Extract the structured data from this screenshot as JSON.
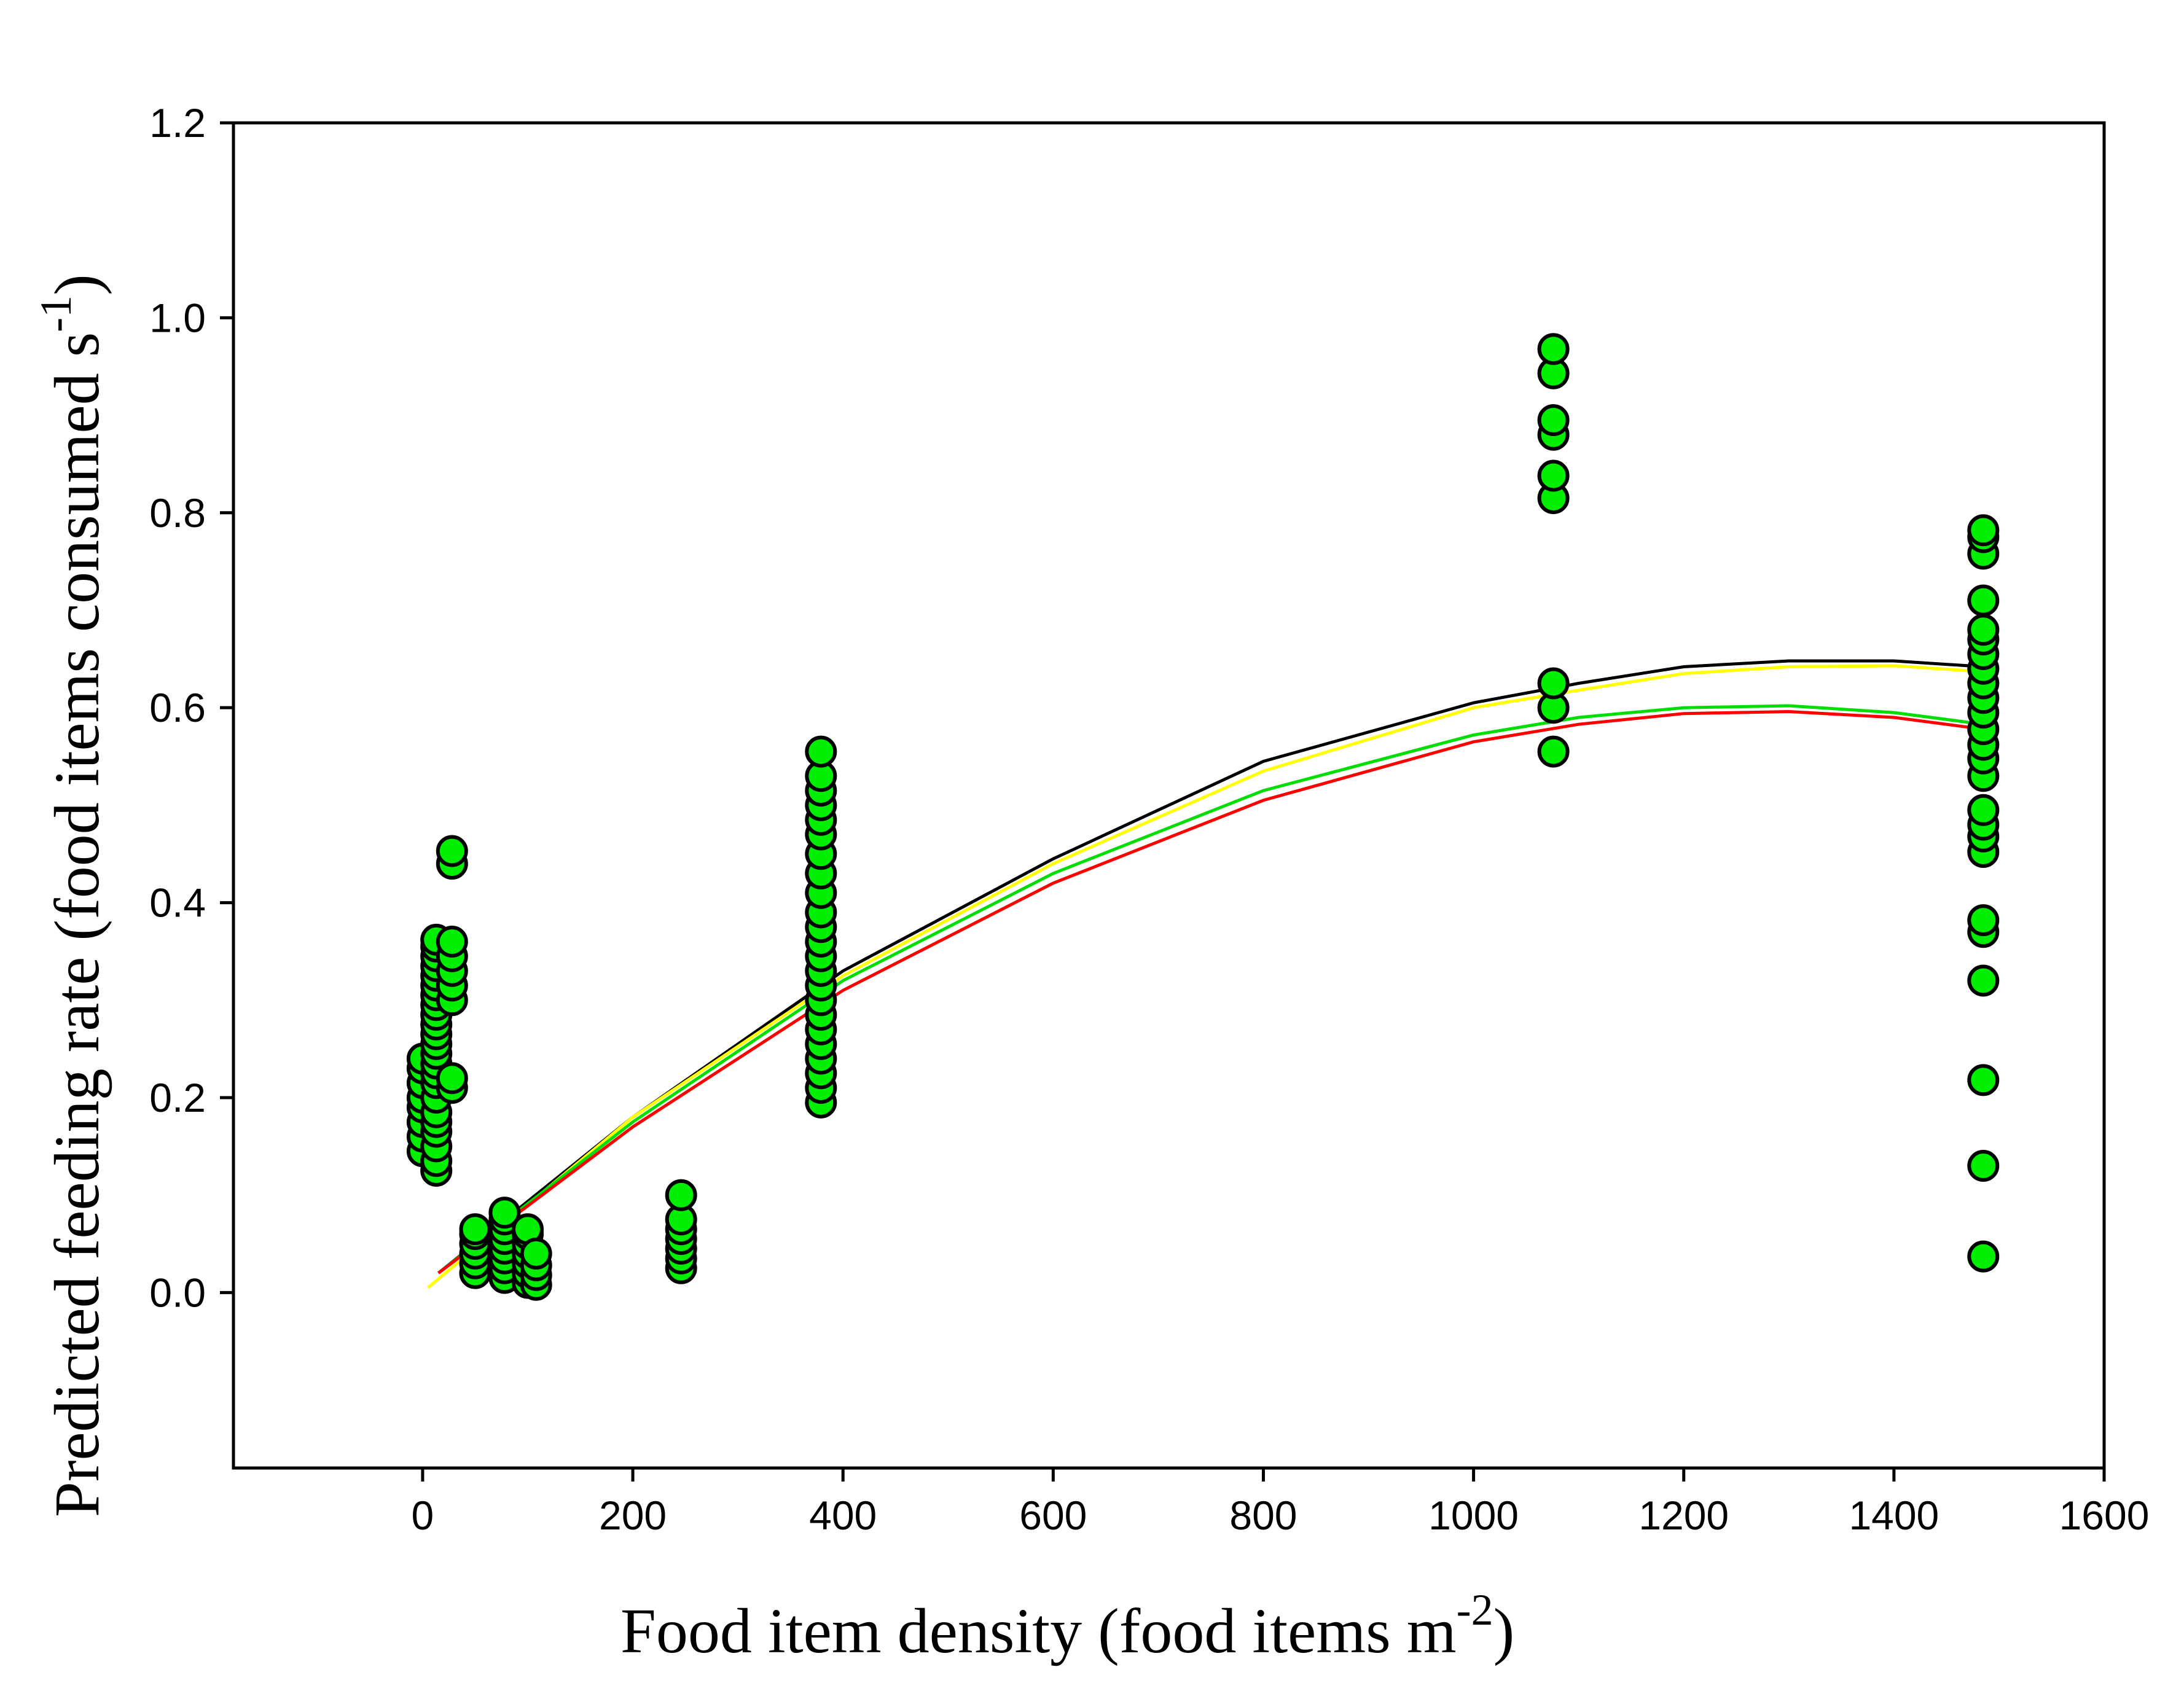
{
  "chart_data": {
    "type": "scatter",
    "title": "",
    "xlabel": "Food item density (food items m",
    "xlabel_sup": "-2",
    "xlabel_close": ")",
    "ylabel": "Predicted feeding rate (food items consumed s",
    "ylabel_sup": "-1",
    "ylabel_close": ")",
    "xlim": [
      -180,
      1600
    ],
    "ylim": [
      -0.18,
      1.2
    ],
    "xticks": [
      0,
      200,
      400,
      600,
      800,
      1000,
      1200,
      1400,
      1600
    ],
    "xtick_labels": [
      "0",
      "200",
      "400",
      "600",
      "800",
      "1000",
      "1200",
      "1400",
      "1600"
    ],
    "yticks": [
      0.0,
      0.2,
      0.4,
      0.6,
      0.8,
      1.0,
      1.2
    ],
    "ytick_labels": [
      "0.0",
      "0.2",
      "0.4",
      "0.6",
      "0.8",
      "1.0",
      "1.2"
    ],
    "grid": false,
    "point_color": "#00ee00",
    "point_edge_color": "#000000",
    "points": [
      {
        "x": 0,
        "y": 0.145
      },
      {
        "x": 0,
        "y": 0.16
      },
      {
        "x": 0,
        "y": 0.175
      },
      {
        "x": 0,
        "y": 0.19
      },
      {
        "x": 0,
        "y": 0.2
      },
      {
        "x": 0,
        "y": 0.215
      },
      {
        "x": 0,
        "y": 0.23
      },
      {
        "x": 0,
        "y": 0.24
      },
      {
        "x": 13,
        "y": 0.125
      },
      {
        "x": 13,
        "y": 0.135
      },
      {
        "x": 13,
        "y": 0.15
      },
      {
        "x": 13,
        "y": 0.165
      },
      {
        "x": 13,
        "y": 0.175
      },
      {
        "x": 13,
        "y": 0.185
      },
      {
        "x": 13,
        "y": 0.2
      },
      {
        "x": 13,
        "y": 0.215
      },
      {
        "x": 13,
        "y": 0.225
      },
      {
        "x": 13,
        "y": 0.235
      },
      {
        "x": 13,
        "y": 0.245
      },
      {
        "x": 13,
        "y": 0.255
      },
      {
        "x": 13,
        "y": 0.265
      },
      {
        "x": 13,
        "y": 0.275
      },
      {
        "x": 13,
        "y": 0.285
      },
      {
        "x": 13,
        "y": 0.295
      },
      {
        "x": 13,
        "y": 0.305
      },
      {
        "x": 13,
        "y": 0.315
      },
      {
        "x": 13,
        "y": 0.325
      },
      {
        "x": 13,
        "y": 0.335
      },
      {
        "x": 13,
        "y": 0.345
      },
      {
        "x": 13,
        "y": 0.355
      },
      {
        "x": 13,
        "y": 0.362
      },
      {
        "x": 28,
        "y": 0.21
      },
      {
        "x": 28,
        "y": 0.22
      },
      {
        "x": 28,
        "y": 0.3
      },
      {
        "x": 28,
        "y": 0.315
      },
      {
        "x": 28,
        "y": 0.33
      },
      {
        "x": 28,
        "y": 0.345
      },
      {
        "x": 28,
        "y": 0.36
      },
      {
        "x": 28,
        "y": 0.44
      },
      {
        "x": 28,
        "y": 0.453
      },
      {
        "x": 50,
        "y": 0.02
      },
      {
        "x": 50,
        "y": 0.03
      },
      {
        "x": 50,
        "y": 0.04
      },
      {
        "x": 50,
        "y": 0.05
      },
      {
        "x": 50,
        "y": 0.06
      },
      {
        "x": 50,
        "y": 0.065
      },
      {
        "x": 78,
        "y": 0.015
      },
      {
        "x": 78,
        "y": 0.025
      },
      {
        "x": 78,
        "y": 0.035
      },
      {
        "x": 78,
        "y": 0.045
      },
      {
        "x": 78,
        "y": 0.055
      },
      {
        "x": 78,
        "y": 0.065
      },
      {
        "x": 78,
        "y": 0.075
      },
      {
        "x": 78,
        "y": 0.082
      },
      {
        "x": 100,
        "y": 0.01
      },
      {
        "x": 100,
        "y": 0.02
      },
      {
        "x": 100,
        "y": 0.03
      },
      {
        "x": 100,
        "y": 0.04
      },
      {
        "x": 100,
        "y": 0.05
      },
      {
        "x": 100,
        "y": 0.06
      },
      {
        "x": 100,
        "y": 0.065
      },
      {
        "x": 108,
        "y": 0.008
      },
      {
        "x": 108,
        "y": 0.018
      },
      {
        "x": 108,
        "y": 0.028
      },
      {
        "x": 108,
        "y": 0.04
      },
      {
        "x": 246,
        "y": 0.025
      },
      {
        "x": 246,
        "y": 0.035
      },
      {
        "x": 246,
        "y": 0.045
      },
      {
        "x": 246,
        "y": 0.055
      },
      {
        "x": 246,
        "y": 0.065
      },
      {
        "x": 246,
        "y": 0.075
      },
      {
        "x": 246,
        "y": 0.1
      },
      {
        "x": 379,
        "y": 0.195
      },
      {
        "x": 379,
        "y": 0.21
      },
      {
        "x": 379,
        "y": 0.225
      },
      {
        "x": 379,
        "y": 0.24
      },
      {
        "x": 379,
        "y": 0.255
      },
      {
        "x": 379,
        "y": 0.27
      },
      {
        "x": 379,
        "y": 0.285
      },
      {
        "x": 379,
        "y": 0.3
      },
      {
        "x": 379,
        "y": 0.315
      },
      {
        "x": 379,
        "y": 0.33
      },
      {
        "x": 379,
        "y": 0.345
      },
      {
        "x": 379,
        "y": 0.36
      },
      {
        "x": 379,
        "y": 0.375
      },
      {
        "x": 379,
        "y": 0.39
      },
      {
        "x": 379,
        "y": 0.41
      },
      {
        "x": 379,
        "y": 0.43
      },
      {
        "x": 379,
        "y": 0.45
      },
      {
        "x": 379,
        "y": 0.47
      },
      {
        "x": 379,
        "y": 0.485
      },
      {
        "x": 379,
        "y": 0.5
      },
      {
        "x": 379,
        "y": 0.515
      },
      {
        "x": 379,
        "y": 0.53
      },
      {
        "x": 379,
        "y": 0.555
      },
      {
        "x": 1076,
        "y": 0.555
      },
      {
        "x": 1076,
        "y": 0.6
      },
      {
        "x": 1076,
        "y": 0.625
      },
      {
        "x": 1076,
        "y": 0.815
      },
      {
        "x": 1076,
        "y": 0.838
      },
      {
        "x": 1076,
        "y": 0.88
      },
      {
        "x": 1076,
        "y": 0.895
      },
      {
        "x": 1076,
        "y": 0.943
      },
      {
        "x": 1076,
        "y": 0.968
      },
      {
        "x": 1485,
        "y": 0.037
      },
      {
        "x": 1485,
        "y": 0.13
      },
      {
        "x": 1485,
        "y": 0.218
      },
      {
        "x": 1485,
        "y": 0.32
      },
      {
        "x": 1485,
        "y": 0.37
      },
      {
        "x": 1485,
        "y": 0.382
      },
      {
        "x": 1485,
        "y": 0.452
      },
      {
        "x": 1485,
        "y": 0.468
      },
      {
        "x": 1485,
        "y": 0.48
      },
      {
        "x": 1485,
        "y": 0.495
      },
      {
        "x": 1485,
        "y": 0.53
      },
      {
        "x": 1485,
        "y": 0.548
      },
      {
        "x": 1485,
        "y": 0.562
      },
      {
        "x": 1485,
        "y": 0.578
      },
      {
        "x": 1485,
        "y": 0.595
      },
      {
        "x": 1485,
        "y": 0.61
      },
      {
        "x": 1485,
        "y": 0.625
      },
      {
        "x": 1485,
        "y": 0.64
      },
      {
        "x": 1485,
        "y": 0.655
      },
      {
        "x": 1485,
        "y": 0.67
      },
      {
        "x": 1485,
        "y": 0.68
      },
      {
        "x": 1485,
        "y": 0.71
      },
      {
        "x": 1485,
        "y": 0.758
      },
      {
        "x": 1485,
        "y": 0.775
      },
      {
        "x": 1485,
        "y": 0.782
      }
    ],
    "series": [
      {
        "name": "black curve",
        "color": "#000000",
        "x": [
          15,
          200,
          400,
          600,
          800,
          1000,
          1100,
          1200,
          1300,
          1400,
          1485
        ],
        "y": [
          0.02,
          0.18,
          0.33,
          0.445,
          0.545,
          0.605,
          0.625,
          0.642,
          0.648,
          0.648,
          0.642
        ]
      },
      {
        "name": "yellow curve",
        "color": "#ffff00",
        "x": [
          5,
          200,
          400,
          600,
          800,
          1000,
          1100,
          1200,
          1300,
          1400,
          1485
        ],
        "y": [
          0.005,
          0.18,
          0.325,
          0.44,
          0.535,
          0.6,
          0.618,
          0.635,
          0.642,
          0.643,
          0.637
        ]
      },
      {
        "name": "green curve",
        "color": "#00dd00",
        "x": [
          15,
          200,
          400,
          600,
          800,
          1000,
          1100,
          1200,
          1300,
          1400,
          1485
        ],
        "y": [
          0.02,
          0.175,
          0.32,
          0.43,
          0.515,
          0.572,
          0.59,
          0.6,
          0.602,
          0.595,
          0.583
        ]
      },
      {
        "name": "red curve",
        "color": "#ff0000",
        "x": [
          15,
          200,
          400,
          600,
          800,
          1000,
          1100,
          1200,
          1300,
          1400,
          1485
        ],
        "y": [
          0.02,
          0.17,
          0.31,
          0.42,
          0.505,
          0.565,
          0.583,
          0.594,
          0.596,
          0.59,
          0.578
        ]
      }
    ]
  }
}
